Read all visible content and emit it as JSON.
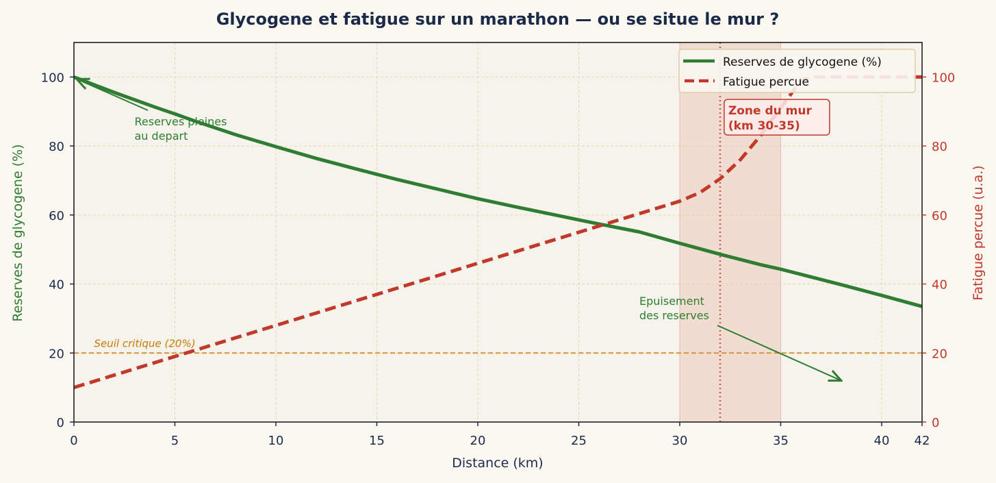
{
  "chart_data": {
    "type": "line",
    "title": "Glycogene et fatigue sur un marathon — ou se situe le mur ?",
    "xlabel": "Distance (km)",
    "ylabel": "Reserves de glycogene (%)",
    "y2label": "Fatigue percue (u.a.)",
    "xlim": [
      0,
      42
    ],
    "ylim": [
      0,
      110
    ],
    "y2lim": [
      0,
      110
    ],
    "xticks": [
      0,
      5,
      10,
      15,
      20,
      25,
      30,
      35,
      40,
      42
    ],
    "yticks": [
      0,
      20,
      40,
      60,
      80,
      100
    ],
    "y2ticks": [
      0,
      20,
      40,
      60,
      80,
      100
    ],
    "grid": true,
    "legend_position": "top-right",
    "series": [
      {
        "name": "Reserves de glycogene (%)",
        "axis": "left",
        "style": "solid",
        "color": "#2e7d32",
        "x": [
          0,
          2,
          4,
          5,
          6,
          8,
          10,
          12,
          14,
          15,
          16,
          18,
          20,
          22,
          24,
          25,
          26,
          28,
          30,
          32,
          34,
          35,
          36,
          38,
          40,
          42
        ],
        "y": [
          100,
          95.5,
          91.3,
          89.3,
          87.2,
          83.3,
          79.8,
          76.4,
          73.3,
          71.8,
          70.3,
          67.5,
          64.7,
          62.2,
          59.8,
          58.6,
          57.4,
          55.1,
          51.8,
          48.6,
          45.6,
          44.3,
          42.8,
          39.8,
          36.7,
          33.5
        ]
      },
      {
        "name": "Fatigue percue",
        "axis": "right",
        "style": "dashed",
        "color": "#c0392b",
        "x": [
          0,
          5,
          10,
          15,
          20,
          25,
          28,
          30,
          31,
          32,
          33,
          34,
          35,
          36,
          36.5,
          38,
          40,
          42
        ],
        "y": [
          10,
          19,
          28,
          37,
          46,
          55,
          60.4,
          64,
          66.5,
          70.5,
          76,
          83,
          91,
          99,
          100,
          100,
          100,
          100
        ]
      }
    ],
    "threshold": {
      "y": 20,
      "label": "Seuil critique (20%)",
      "color": "#d4943a"
    },
    "wall_zone": {
      "x": [
        30,
        35
      ],
      "marker_x": 32,
      "label_line1": "Zone du mur",
      "label_line2": "(km 30-35)"
    },
    "annotations": [
      {
        "line1": "Reserves pleines",
        "line2": "au depart",
        "point": [
          0,
          100
        ],
        "text_at": [
          3,
          85
        ]
      },
      {
        "line1": "Epuisement",
        "line2": "des reserves",
        "point": [
          38,
          12
        ],
        "text_at": [
          28,
          33
        ]
      }
    ]
  }
}
